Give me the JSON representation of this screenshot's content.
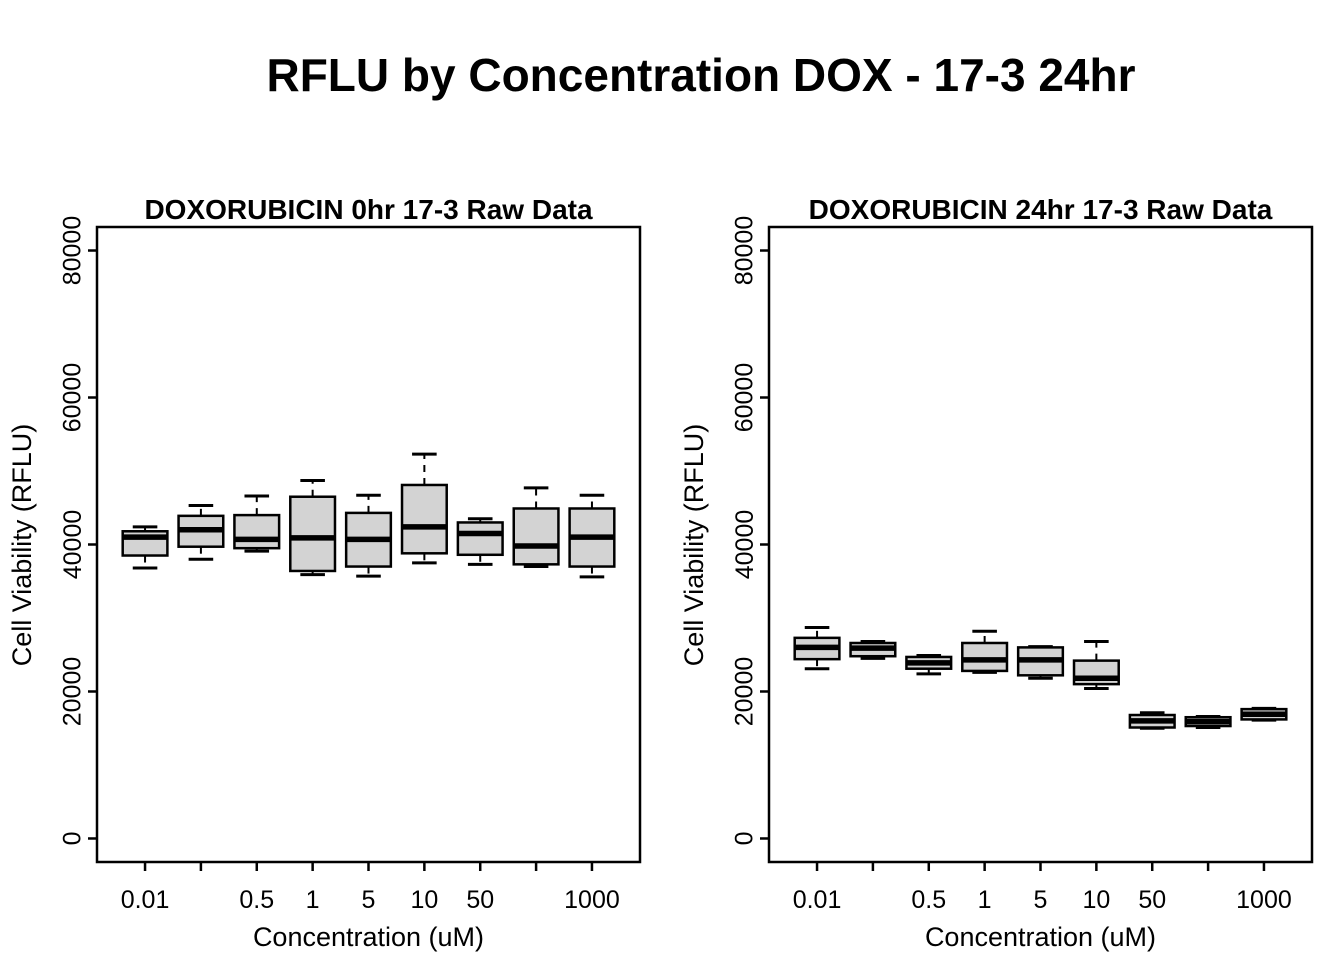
{
  "page_title": "RFLU by Concentration DOX - 17-3 24hr",
  "style": {
    "background": "#ffffff",
    "box_fill": "#d3d3d3",
    "line_color": "#000000",
    "text_color": "#000000"
  },
  "chart_data": [
    {
      "type": "boxplot",
      "title": "DOXORUBICIN 0hr 17-3 Raw Data",
      "xlabel": "Concentration (uM)",
      "ylabel": "Cell Viability (RFLU)",
      "ylim": [
        0,
        80000
      ],
      "grid": false,
      "y_ticks": [
        0,
        20000,
        40000,
        60000,
        80000
      ],
      "y_tick_labels": [
        "0",
        "20000",
        "40000",
        "60000",
        "80000"
      ],
      "x_tick_labels": [
        "0.01",
        "",
        "0.5",
        "1",
        "5",
        "10",
        "50",
        "",
        "1000"
      ],
      "boxes": [
        {
          "label": "0.01",
          "low": 36800,
          "q1": 38500,
          "median": 41000,
          "q3": 41800,
          "high": 42400
        },
        {
          "label": "",
          "low": 38000,
          "q1": 39700,
          "median": 42000,
          "q3": 43900,
          "high": 45300
        },
        {
          "label": "0.5",
          "low": 39100,
          "q1": 39500,
          "median": 40700,
          "q3": 44000,
          "high": 46600
        },
        {
          "label": "1",
          "low": 35900,
          "q1": 36400,
          "median": 40900,
          "q3": 46500,
          "high": 48700
        },
        {
          "label": "5",
          "low": 35700,
          "q1": 37000,
          "median": 40700,
          "q3": 44300,
          "high": 46700
        },
        {
          "label": "10",
          "low": 37500,
          "q1": 38800,
          "median": 42400,
          "q3": 48100,
          "high": 52300
        },
        {
          "label": "50",
          "low": 37300,
          "q1": 38600,
          "median": 41500,
          "q3": 43000,
          "high": 43500
        },
        {
          "label": "",
          "low": 37000,
          "q1": 37300,
          "median": 39800,
          "q3": 44900,
          "high": 47700
        },
        {
          "label": "1000",
          "low": 35600,
          "q1": 37000,
          "median": 41000,
          "q3": 44900,
          "high": 46700
        }
      ]
    },
    {
      "type": "boxplot",
      "title": "DOXORUBICIN 24hr 17-3 Raw Data",
      "xlabel": "Concentration (uM)",
      "ylabel": "Cell Viability (RFLU)",
      "ylim": [
        0,
        80000
      ],
      "grid": false,
      "y_ticks": [
        0,
        20000,
        40000,
        60000,
        80000
      ],
      "y_tick_labels": [
        "0",
        "20000",
        "40000",
        "60000",
        "80000"
      ],
      "x_tick_labels": [
        "0.01",
        "",
        "0.5",
        "1",
        "5",
        "10",
        "50",
        "",
        "1000"
      ],
      "boxes": [
        {
          "label": "0.01",
          "low": 23100,
          "q1": 24400,
          "median": 26000,
          "q3": 27300,
          "high": 28700
        },
        {
          "label": "",
          "low": 24500,
          "q1": 24800,
          "median": 25900,
          "q3": 26600,
          "high": 26800
        },
        {
          "label": "0.5",
          "low": 22400,
          "q1": 23100,
          "median": 23900,
          "q3": 24700,
          "high": 24900
        },
        {
          "label": "1",
          "low": 22600,
          "q1": 22800,
          "median": 24300,
          "q3": 26600,
          "high": 28200
        },
        {
          "label": "5",
          "low": 21800,
          "q1": 22200,
          "median": 24300,
          "q3": 26000,
          "high": 26100
        },
        {
          "label": "10",
          "low": 20400,
          "q1": 21000,
          "median": 21800,
          "q3": 24200,
          "high": 26800
        },
        {
          "label": "50",
          "low": 15000,
          "q1": 15100,
          "median": 16000,
          "q3": 16800,
          "high": 17100
        },
        {
          "label": "",
          "low": 15100,
          "q1": 15300,
          "median": 15900,
          "q3": 16500,
          "high": 16600
        },
        {
          "label": "1000",
          "low": 16100,
          "q1": 16200,
          "median": 16900,
          "q3": 17600,
          "high": 17700
        }
      ]
    }
  ]
}
